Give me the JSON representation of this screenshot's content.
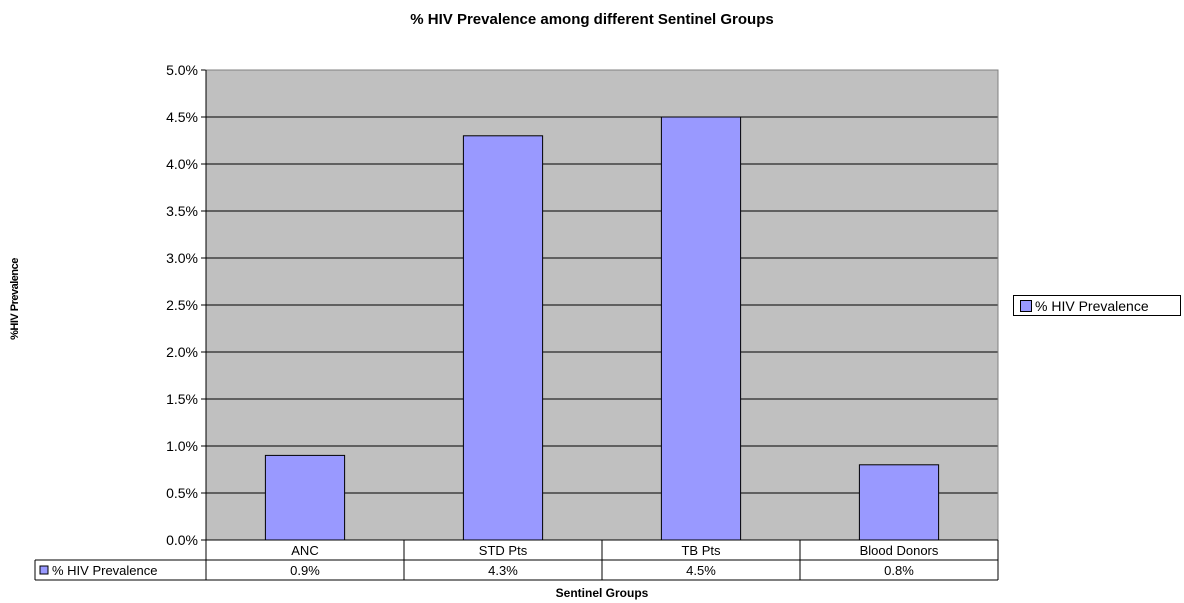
{
  "chart_data": {
    "type": "bar",
    "title": "% HIV Prevalence among different Sentinel Groups",
    "xlabel": "Sentinel Groups",
    "ylabel": "%HIV Prevalence",
    "categories": [
      "ANC",
      "STD Pts",
      "TB Pts",
      "Blood Donors"
    ],
    "series": [
      {
        "name": "% HIV Prevalence",
        "values": [
          0.9,
          4.3,
          4.5,
          0.8
        ],
        "labels": [
          "0.9%",
          "4.3%",
          "4.5%",
          "0.8%"
        ]
      }
    ],
    "ylim": [
      0,
      5
    ],
    "yticks": [
      "0.0%",
      "0.5%",
      "1.0%",
      "1.5%",
      "2.0%",
      "2.5%",
      "3.0%",
      "3.5%",
      "4.0%",
      "4.5%",
      "5.0%"
    ],
    "grid": true,
    "legend_position": "right",
    "data_table": true
  },
  "colors": {
    "plot_background": "#c0c0c0",
    "bar_fill": "#9999ff",
    "bar_stroke": "#000000",
    "grid": "#000000"
  }
}
